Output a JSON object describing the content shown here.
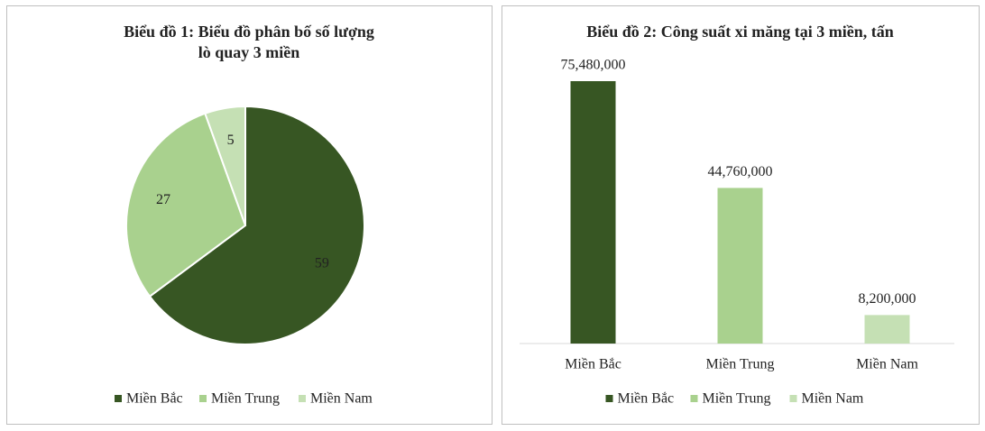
{
  "chart_data": [
    {
      "type": "pie",
      "title": [
        "Biểu đồ 1: Biểu đồ phân bố số lượng",
        "lò quay 3 miền"
      ],
      "categories": [
        "Miền Bắc",
        "Miền Trung",
        "Miền Nam"
      ],
      "values": [
        59,
        27,
        5
      ],
      "colors": [
        "#375623",
        "#a9d18e",
        "#c5e0b4"
      ],
      "legend": "bottom"
    },
    {
      "type": "bar",
      "title": [
        "Biểu đồ 2: Công suất xi măng tại 3 miền, tấn"
      ],
      "categories": [
        "Miền Bắc",
        "Miền Trung",
        "Miền Nam"
      ],
      "values": [
        75480000,
        44760000,
        8200000
      ],
      "value_labels": [
        "75,480,000",
        "44,760,000",
        "8,200,000"
      ],
      "colors": [
        "#375623",
        "#a9d18e",
        "#c5e0b4"
      ],
      "legend": "bottom"
    }
  ]
}
